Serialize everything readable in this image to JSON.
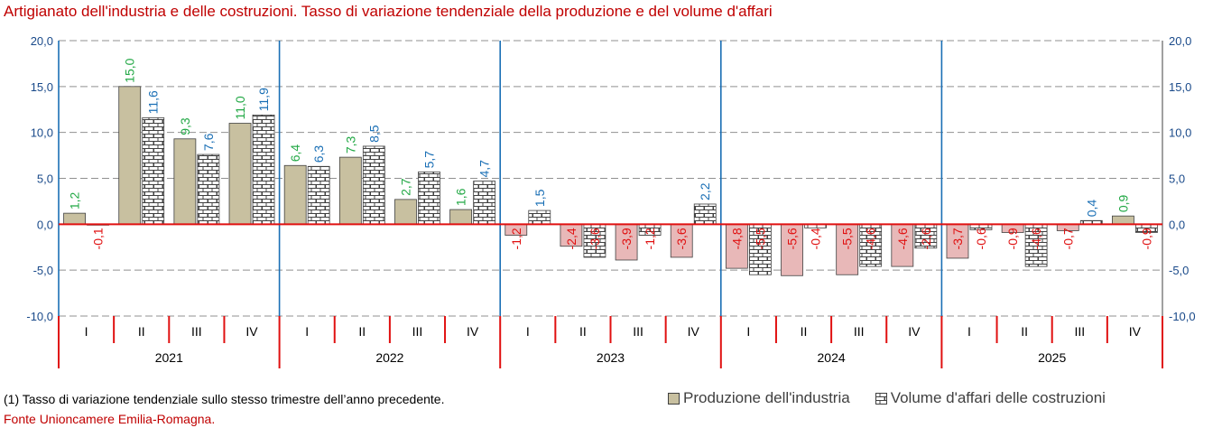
{
  "title": "Artigianato dell'industria e delle costruzioni. Tasso di variazione tendenziale della produzione e del volume d'affari",
  "footnote": "(1) Tasso di variazione tendenziale sullo stesso trimestre dell’anno precedente.",
  "source": "Fonte Unioncamere Emilia-Romagna.",
  "colors": {
    "production_pos": "#c8c0a0",
    "production_neg": "#e8b8b8",
    "positive_label_green": "#22a845",
    "positive_label_blue": "#1a6fb5",
    "negative_label": "#e01010",
    "axis": "#e01010",
    "year_separator": "#1a6fb5",
    "bar_outline": "#404040"
  },
  "chart_data": {
    "type": "bar",
    "years": [
      "2021",
      "2022",
      "2023",
      "2024",
      "2025"
    ],
    "quarters": [
      "I",
      "II",
      "III",
      "IV"
    ],
    "categories": [
      "2021 I",
      "2021 II",
      "2021 III",
      "2021 IV",
      "2022 I",
      "2022 II",
      "2022 III",
      "2022 IV",
      "2023 I",
      "2023 II",
      "2023 III",
      "2023 IV",
      "2024 I",
      "2024 II",
      "2024 III",
      "2024 IV",
      "2025 I",
      "2025 II",
      "2025 III",
      "2025 IV"
    ],
    "series": [
      {
        "name": "Produzione dell'industria",
        "values": [
          1.2,
          15.0,
          9.3,
          11.0,
          6.4,
          7.3,
          2.7,
          1.6,
          -1.2,
          -2.4,
          -3.9,
          -3.6,
          -4.8,
          -5.6,
          -5.5,
          -4.6,
          -3.7,
          -0.9,
          -0.7,
          0.9
        ],
        "labels": [
          "1,2",
          "15,0",
          "9,3",
          "11,0",
          "6,4",
          "7,3",
          "2,7",
          "1,6",
          "-1,2",
          "-2,4",
          "-3,9",
          "-3,6",
          "-4,8",
          "-5,6",
          "-5,5",
          "-4,6",
          "-3,7",
          "-0,9",
          "-0,7",
          "0,9"
        ]
      },
      {
        "name": "Volume d'affari delle costruzioni",
        "values": [
          -0.1,
          11.6,
          7.6,
          11.9,
          6.3,
          8.5,
          5.7,
          4.7,
          1.5,
          -3.6,
          -1.2,
          2.2,
          -5.5,
          -0.4,
          -4.6,
          -2.6,
          -0.6,
          -4.6,
          0.4,
          -0.9
        ],
        "labels": [
          "-0,1",
          "11,6",
          "7,6",
          "11,9",
          "6,3",
          "8,5",
          "5,7",
          "4,7",
          "1,5",
          "-3,6",
          "-1,2",
          "2,2",
          "-5,5",
          "-0,4",
          "-4,6",
          "-2,6",
          "-0,6",
          "-4,6",
          "0,4",
          "-0,9"
        ]
      }
    ],
    "visible_labels_production": [
      true,
      true,
      true,
      true,
      true,
      true,
      true,
      true,
      true,
      true,
      true,
      true,
      true,
      true,
      true,
      true,
      true,
      true,
      true,
      true
    ],
    "visible_labels_volume": [
      true,
      true,
      true,
      true,
      true,
      true,
      true,
      true,
      true,
      true,
      true,
      true,
      true,
      true,
      true,
      true,
      true,
      true,
      true,
      true
    ],
    "ylim": [
      -10,
      20
    ],
    "yticks": [
      20,
      15,
      10,
      5,
      0,
      -5,
      -10
    ],
    "ytick_labels": [
      "20,0",
      "15,0",
      "10,0",
      "5,0",
      "0,0",
      "-5,0",
      "-10,0"
    ],
    "grid": true,
    "legend_position": "bottom-right"
  }
}
